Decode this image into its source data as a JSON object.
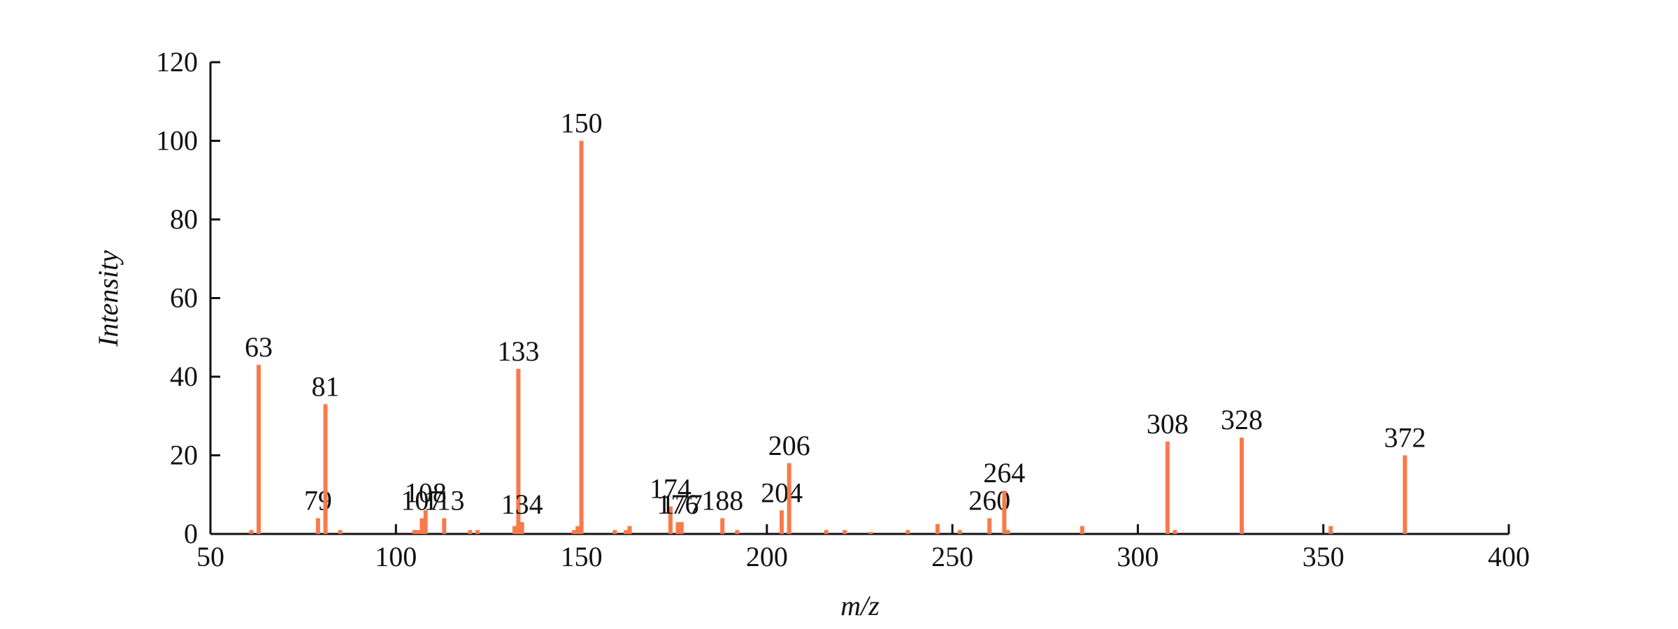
{
  "chart_data": {
    "type": "bar",
    "xlabel": "m/z",
    "ylabel": "Intensity",
    "x": [
      61,
      63,
      79,
      81,
      85,
      105,
      106,
      107,
      108,
      113,
      120,
      122,
      132,
      133,
      134,
      148,
      149,
      150,
      159,
      162,
      163,
      174,
      176,
      177,
      188,
      192,
      204,
      206,
      216,
      221,
      228,
      238,
      246,
      252,
      260,
      264,
      265,
      285,
      308,
      310,
      328,
      352,
      372
    ],
    "values": [
      1,
      43,
      4,
      33,
      1,
      1,
      1,
      4,
      6,
      4,
      1,
      1,
      2,
      42,
      3,
      1,
      2,
      100,
      1,
      1,
      2,
      7,
      3,
      3,
      4,
      1,
      6,
      18,
      1,
      1,
      0.5,
      1,
      2.5,
      1,
      4,
      11,
      1,
      2,
      23.5,
      1,
      24.5,
      2,
      20
    ],
    "value_labels": [
      null,
      "63",
      "79",
      "81",
      null,
      null,
      null,
      "107",
      "108",
      "113",
      null,
      null,
      null,
      "133",
      "134",
      null,
      null,
      "150",
      null,
      null,
      null,
      "174",
      "176",
      "177",
      "188",
      null,
      "204",
      "206",
      null,
      null,
      null,
      null,
      null,
      null,
      "260",
      "264",
      null,
      null,
      "308",
      null,
      "328",
      null,
      "372"
    ],
    "color": "#f87a4a",
    "xlim": [
      50,
      400
    ],
    "xticks": [
      50,
      100,
      150,
      200,
      250,
      300,
      350,
      400
    ],
    "ylim": [
      0,
      120
    ],
    "yticks": [
      0,
      20,
      40,
      60,
      80,
      100,
      120
    ]
  }
}
